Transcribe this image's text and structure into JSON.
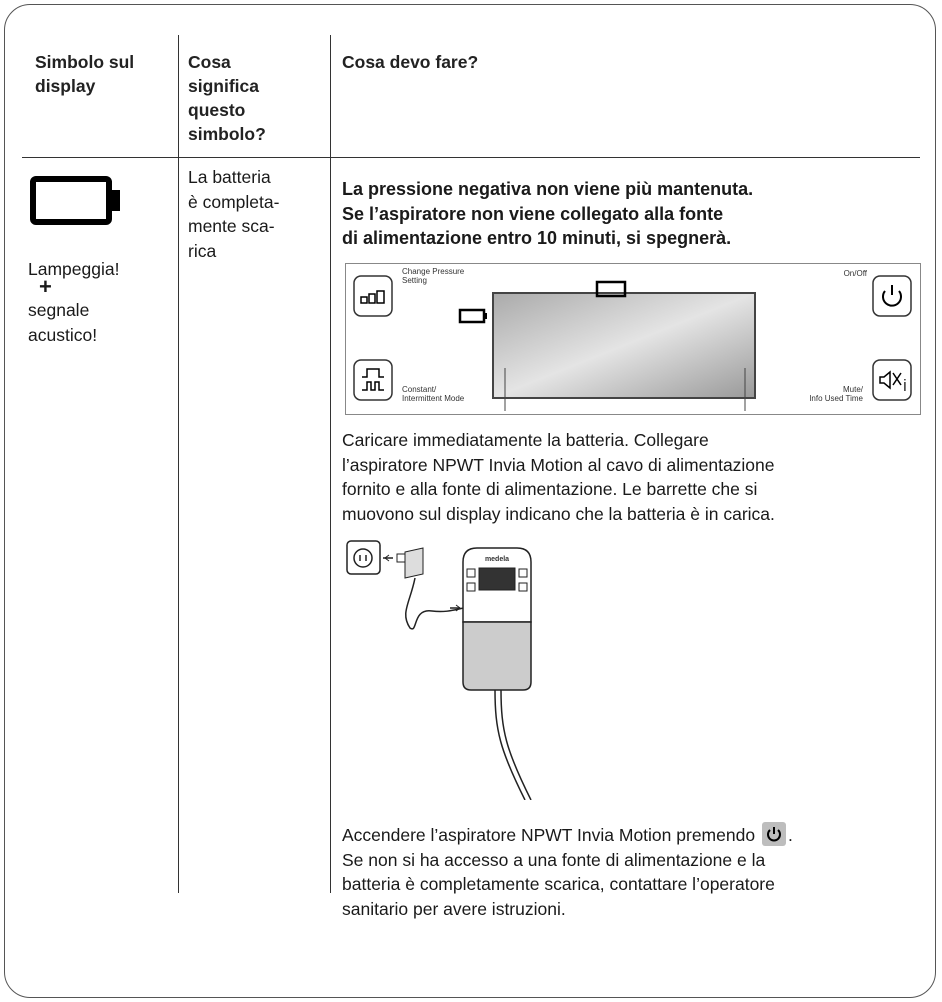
{
  "header": {
    "col1": [
      "Simbolo sul",
      "display"
    ],
    "col2": [
      "Cosa",
      "significa",
      "questo",
      "simbolo?"
    ],
    "col3": [
      "Cosa devo fare?"
    ]
  },
  "row": {
    "symbol": {
      "flash": "Lampeggia!",
      "plus": "+",
      "sound": [
        "segnale",
        "acustico!"
      ]
    },
    "meaning": [
      "La batteria",
      "è completa-",
      "mente sca-",
      "rica"
    ],
    "warning": [
      "La pressione negativa non viene più mantenuta.",
      "Se l’aspiratore non viene collegato alla fonte",
      "di alimentazione entro 10 minuti, si spegnerà."
    ],
    "panel": {
      "change_pressure": [
        "Change Pressure",
        "Setting"
      ],
      "on_off": "On/Off",
      "mode": [
        "Constant/",
        "Intermittent Mode"
      ],
      "mute": [
        "Mute/",
        "Info Used Time"
      ]
    },
    "charge": [
      "Caricare immediatamente la batteria. Collegare",
      "l’aspiratore NPWT Invia Motion al cavo di alimentazione",
      "fornito e alla fonte di alimentazione. Le barrette che si",
      "muovono sul display indicano che la batteria è in carica."
    ],
    "device_brand": "medela",
    "switch_on": {
      "before_icon": "Accendere l’aspiratore NPWT Invia Motion premendo",
      "after_icon": ".",
      "lines": [
        "Se non si ha accesso a una fonte di alimentazione e la",
        "batteria è completamente scarica, contattare l’operatore",
        "sanitario per avere istruzioni."
      ]
    }
  }
}
